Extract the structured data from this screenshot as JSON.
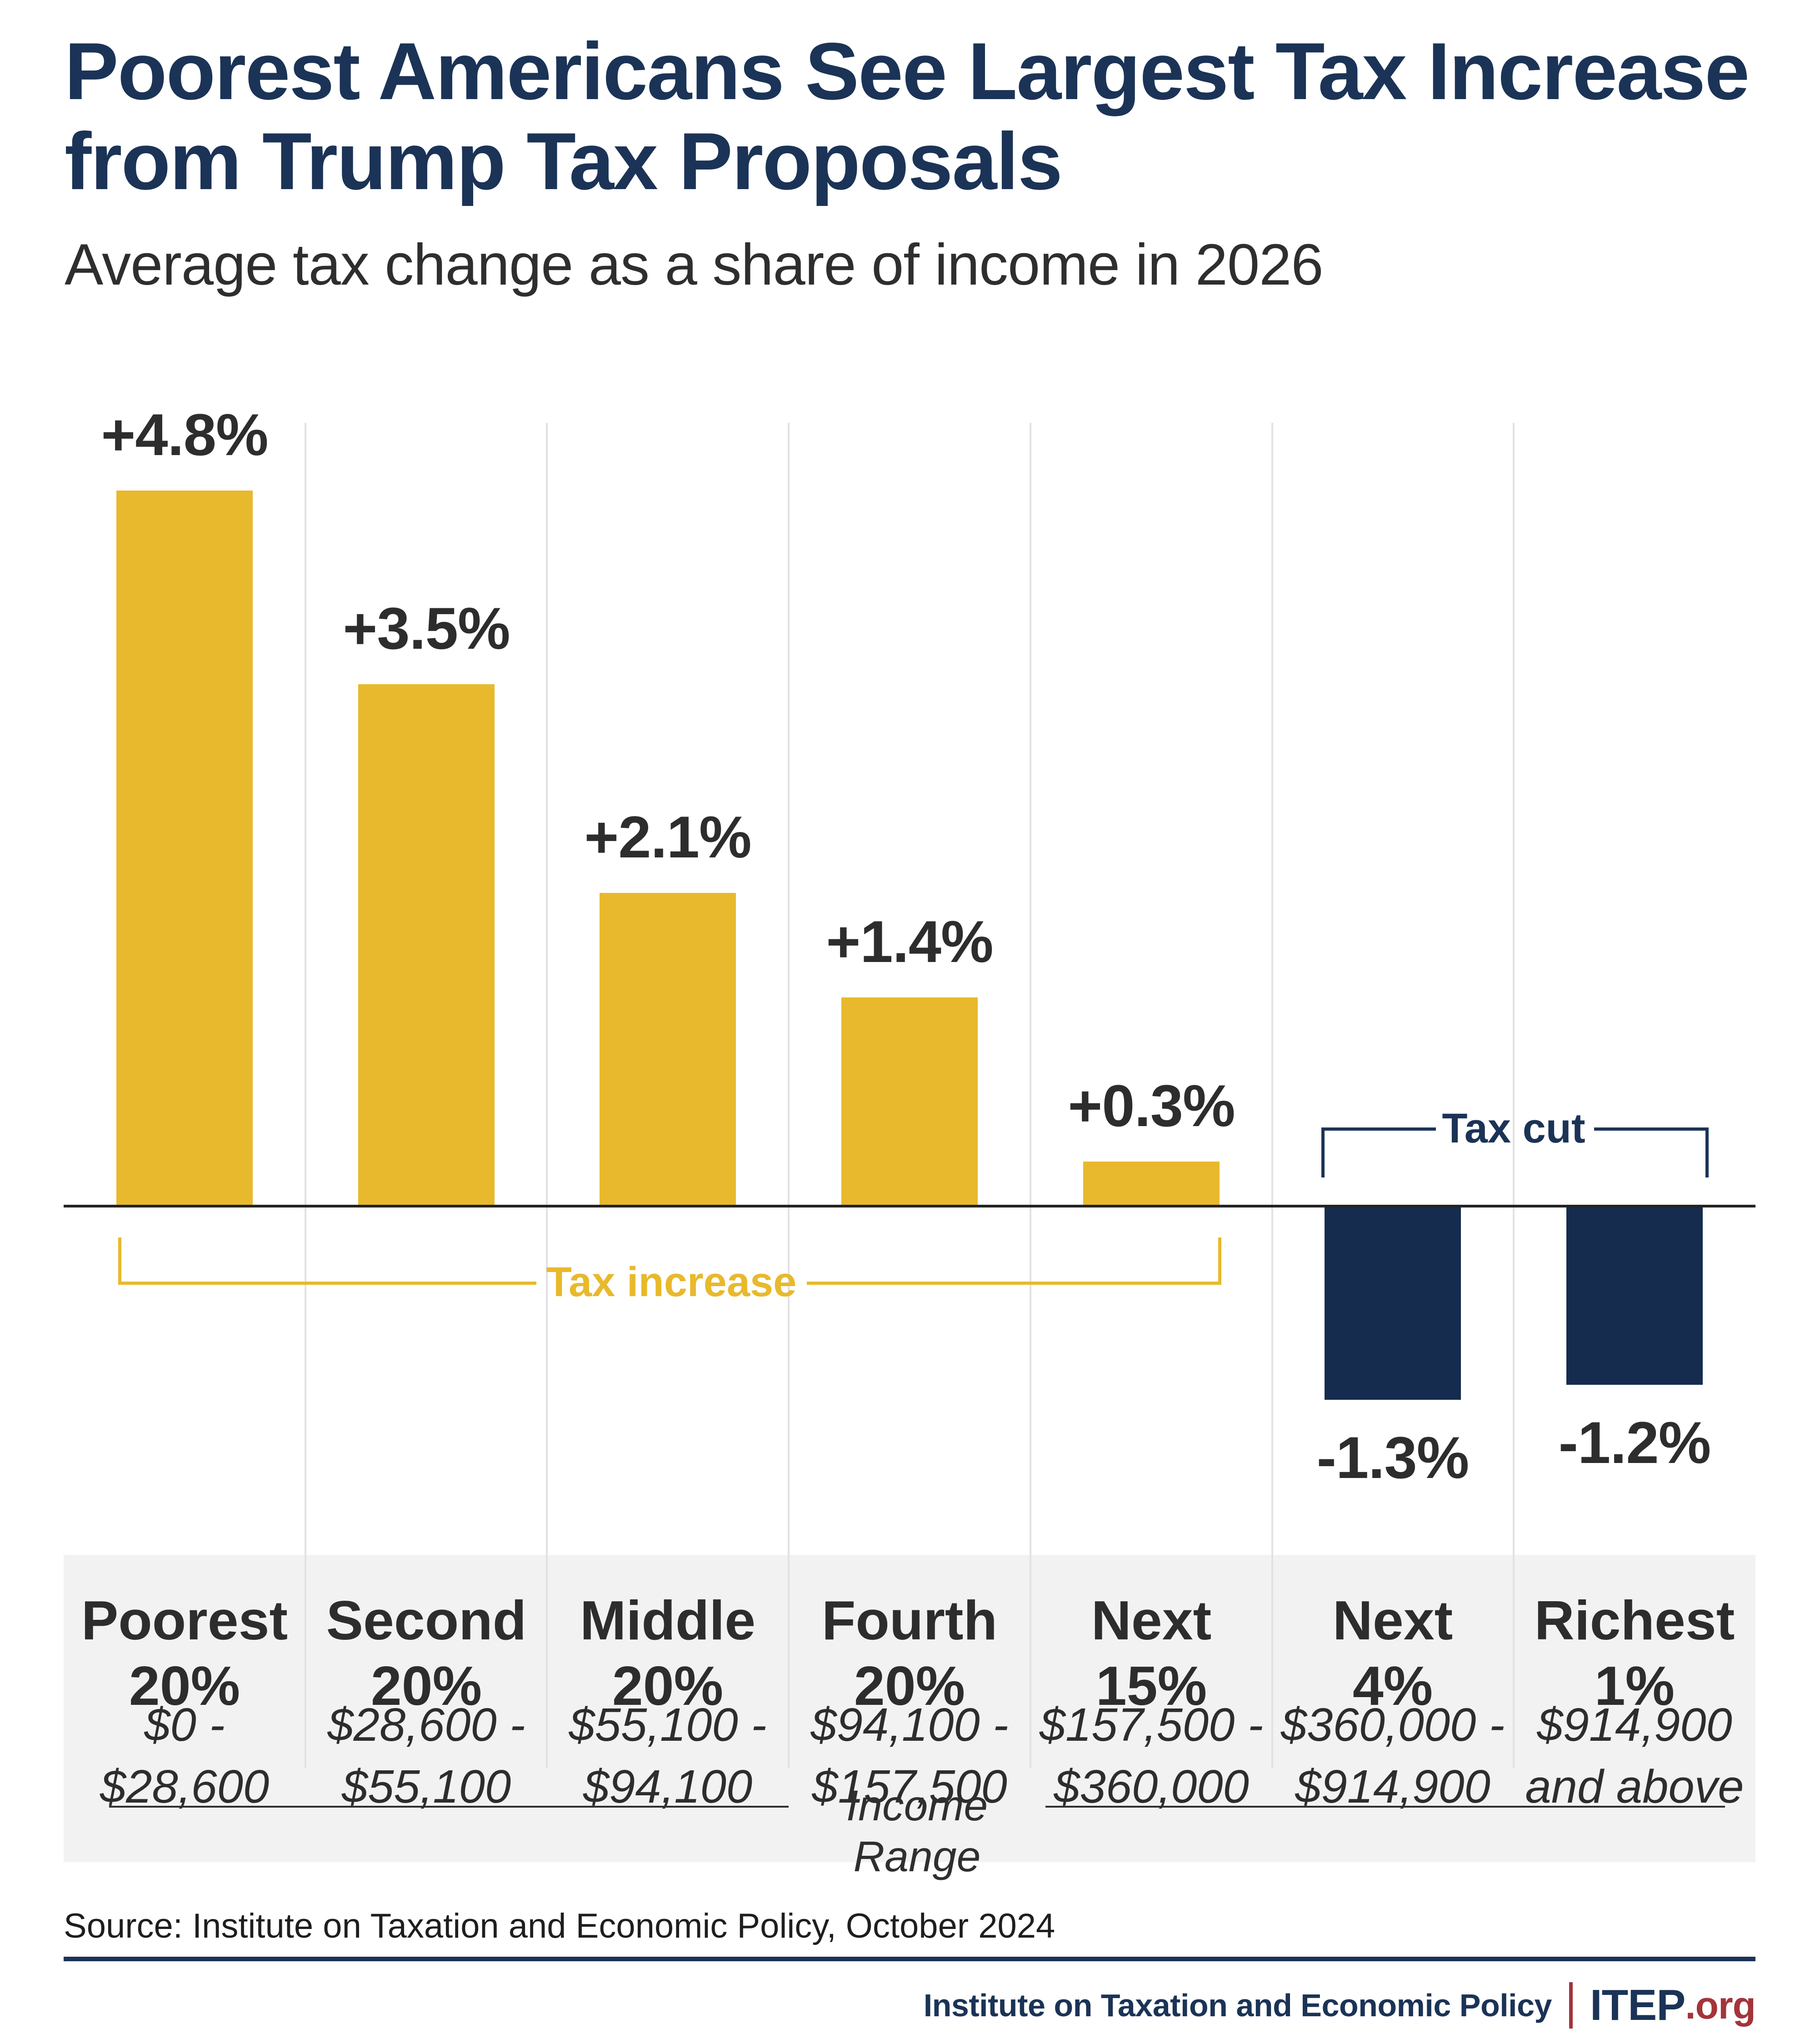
{
  "title": {
    "line1": "Poorest Americans See Largest Tax Increase",
    "line2": "from Trump Tax Proposals"
  },
  "subtitle": "Average tax change as a share of income in 2026",
  "chart_data": {
    "type": "bar",
    "title": "Poorest Americans See Largest Tax Increase from Trump Tax Proposals",
    "subtitle": "Average tax change as a share of income in 2026",
    "categories": [
      "Poorest 20%",
      "Second 20%",
      "Middle 20%",
      "Fourth 20%",
      "Next 15%",
      "Next 4%",
      "Richest 1%"
    ],
    "category_lines": [
      [
        "Poorest",
        "20%"
      ],
      [
        "Second",
        "20%"
      ],
      [
        "Middle",
        "20%"
      ],
      [
        "Fourth",
        "20%"
      ],
      [
        "Next",
        "15%"
      ],
      [
        "Next",
        "4%"
      ],
      [
        "Richest",
        "1%"
      ]
    ],
    "income_range_lines": [
      [
        "$0 -",
        "$28,600"
      ],
      [
        "$28,600 -",
        "$55,100"
      ],
      [
        "$55,100 -",
        "$94,100"
      ],
      [
        "$94,100 -",
        "$157,500"
      ],
      [
        "$157,500 -",
        "$360,000"
      ],
      [
        "$360,000 -",
        "$914,900"
      ],
      [
        "$914,900",
        "and above"
      ]
    ],
    "values": [
      4.8,
      3.5,
      2.1,
      1.4,
      0.3,
      -1.3,
      -1.2
    ],
    "value_labels": [
      "+4.8%",
      "+3.5%",
      "+2.1%",
      "+1.4%",
      "+0.3%",
      "-1.3%",
      "-1.2%"
    ],
    "xlabel": "Income Range",
    "ylim": [
      -2.0,
      5.2
    ],
    "grid": "vertical column separators only",
    "legend_position": "none",
    "annotations": {
      "tax_increase": "Tax increase",
      "tax_cut": "Tax cut"
    },
    "colors": {
      "positive_bar": "#E8B92C",
      "negative_bar": "#152C4E",
      "tax_increase_bracket": "#E8B92C",
      "tax_cut_bracket": "#1B3356"
    }
  },
  "axis": {
    "x_label": "Income Range"
  },
  "source": "Source: Institute on Taxation and Economic Policy, October 2024",
  "footer": {
    "org_name": "Institute on Taxation and Economic Policy",
    "brand": "ITEP",
    "brand_suffix": ".org"
  },
  "colors": {
    "title_navy": "#1B3356",
    "bar_gold": "#E8B92C",
    "bar_navy": "#152C4E",
    "brand_red": "#A4343A",
    "band_gray": "#F2F2F2",
    "gridline": "#E2E2E2",
    "zero_line": "#232323"
  }
}
